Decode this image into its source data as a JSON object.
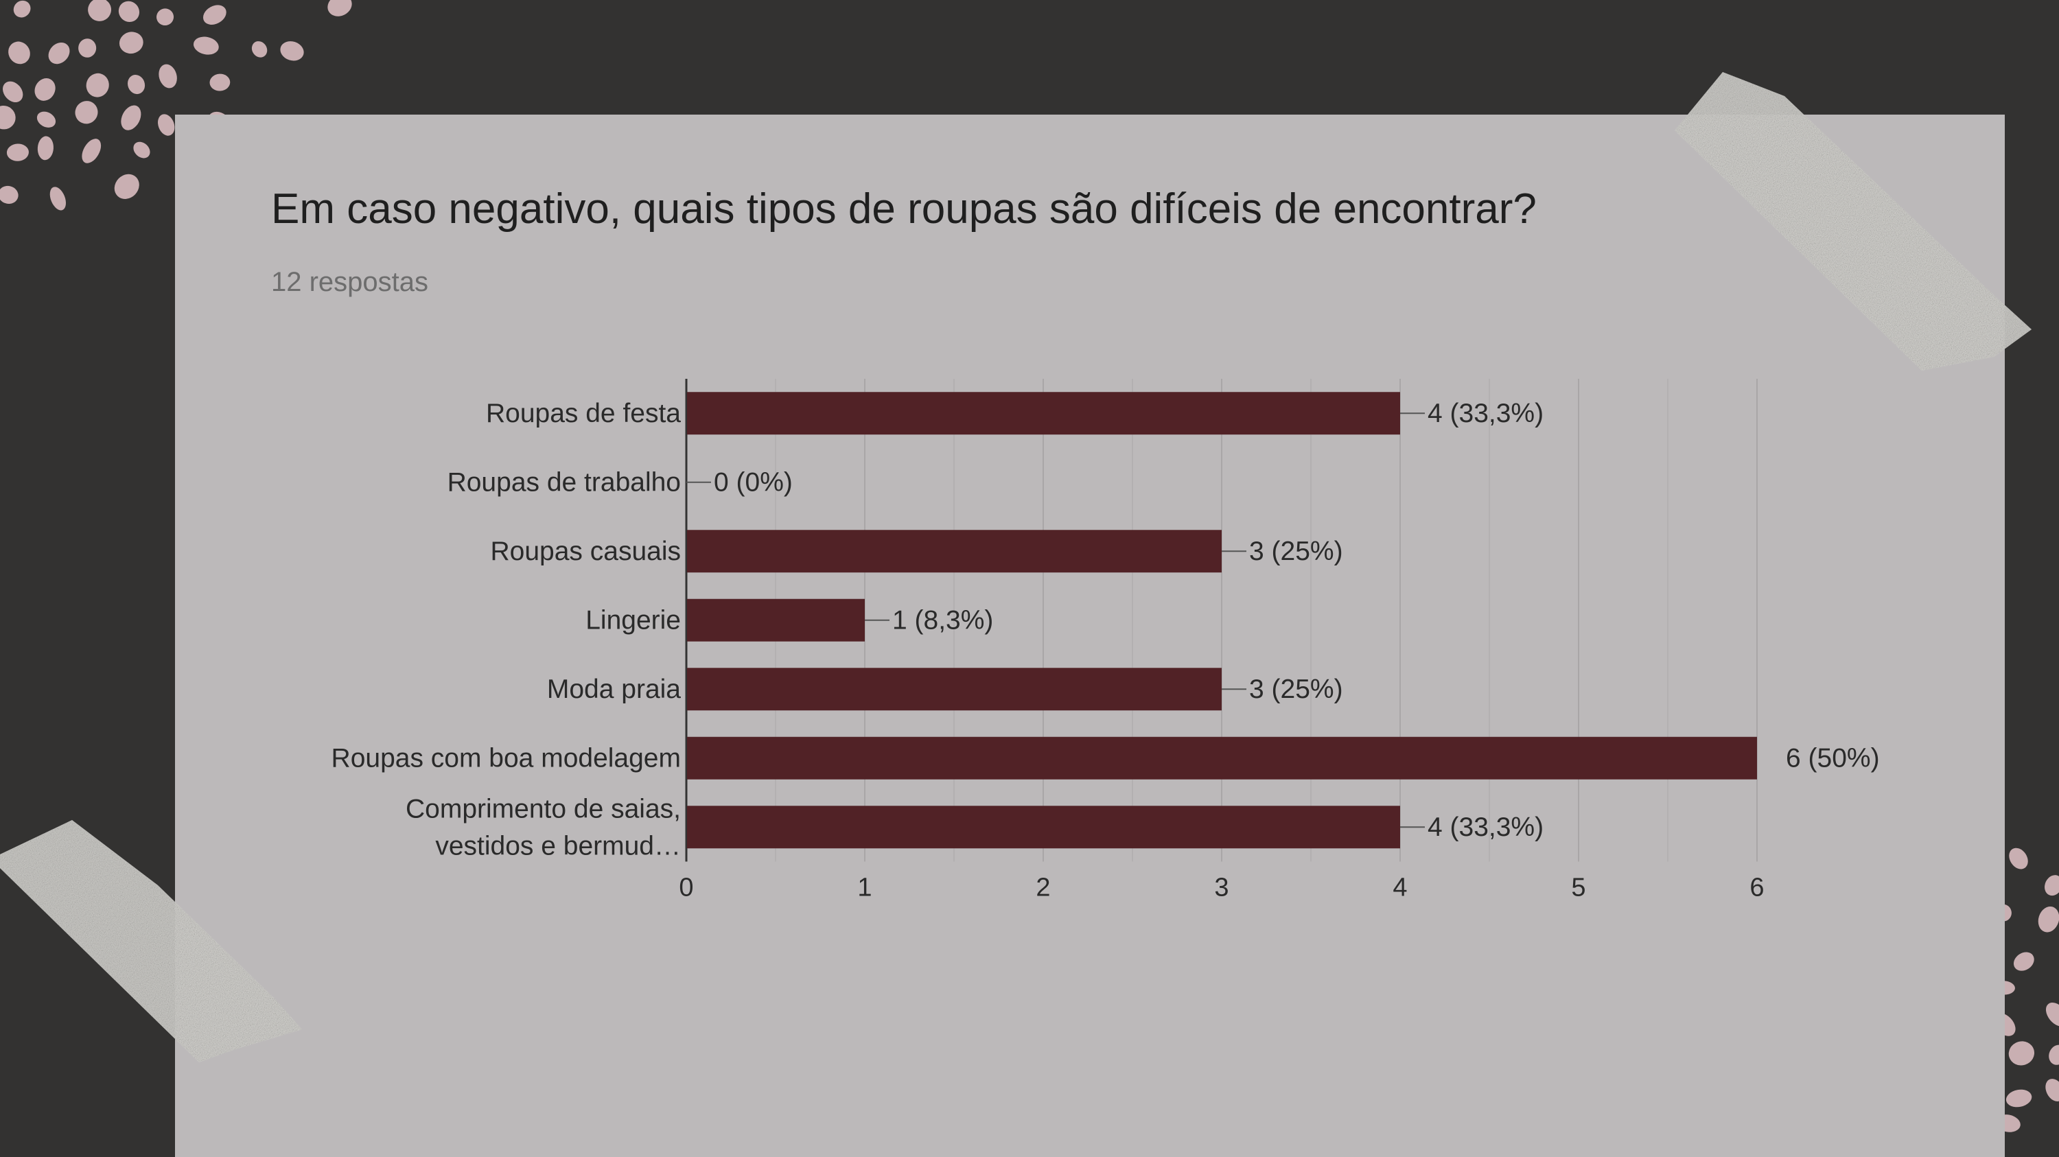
{
  "header": {
    "title": "Em caso negativo, quais tipos de roupas são difíceis de encontrar?",
    "subtitle": "12 respostas"
  },
  "colors": {
    "background": "#333231",
    "card": "#bcb9ba",
    "bar": "#512226",
    "dots": "#c9afb2",
    "tape": "#d9d8d4"
  },
  "chart_data": {
    "type": "bar",
    "orientation": "horizontal",
    "categories": [
      "Roupas de festa",
      "Roupas de trabalho",
      "Roupas casuais",
      "Lingerie",
      "Moda praia",
      "Roupas com boa modelagem",
      "Comprimento de saias, vestidos e bermud…"
    ],
    "values": [
      4,
      0,
      3,
      1,
      3,
      6,
      4
    ],
    "data_labels": [
      "4 (33,3%)",
      "0 (0%)",
      "3 (25%)",
      "1 (8,3%)",
      "3 (25%)",
      "6 (50%)",
      "4 (33,3%)"
    ],
    "xlim": [
      0,
      6
    ],
    "x_ticks": [
      0,
      1,
      2,
      3,
      4,
      5,
      6
    ],
    "grid": true,
    "legend": "none"
  }
}
